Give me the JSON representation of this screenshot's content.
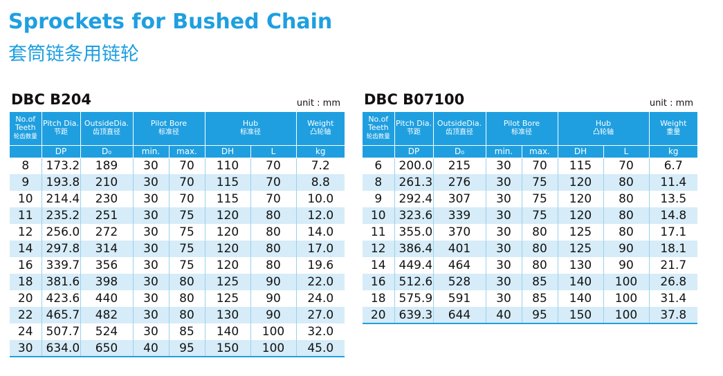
{
  "title_en": "Sprockets for Bushed Chain",
  "title_zh": "套筒链条用链轮",
  "tables": [
    {
      "model": "DBC B204",
      "unit": "unit : mm",
      "headers": {
        "teeth": "No.of Teeth",
        "teeth_zh": "轮齿数量",
        "pitch": "Pitch Dia.",
        "pitch_zh": "节距",
        "outside": "OutsideDia.",
        "outside_zh": "齿顶直径",
        "pilot": "Pilot  Bore",
        "pilot_zh": "标准径",
        "hub": "Hub",
        "hub_zh": "标准径",
        "weight": "Weight",
        "weight_zh": "凸轮轴",
        "dp": "DP",
        "do": "D₀",
        "min": "min.",
        "max": "max.",
        "dh": "DH",
        "l": "L",
        "kg": "kg"
      },
      "rows": [
        [
          "8",
          "173.2",
          "189",
          "30",
          "70",
          "110",
          "70",
          "7.2"
        ],
        [
          "9",
          "193.8",
          "210",
          "30",
          "70",
          "115",
          "70",
          "8.8"
        ],
        [
          "10",
          "214.4",
          "230",
          "30",
          "70",
          "115",
          "70",
          "10.0"
        ],
        [
          "11",
          "235.2",
          "251",
          "30",
          "75",
          "120",
          "80",
          "12.0"
        ],
        [
          "12",
          "256.0",
          "272",
          "30",
          "75",
          "120",
          "80",
          "14.0"
        ],
        [
          "14",
          "297.8",
          "314",
          "30",
          "75",
          "120",
          "80",
          "17.0"
        ],
        [
          "16",
          "339.7",
          "356",
          "30",
          "75",
          "120",
          "80",
          "19.6"
        ],
        [
          "18",
          "381.6",
          "398",
          "30",
          "80",
          "125",
          "90",
          "22.0"
        ],
        [
          "20",
          "423.6",
          "440",
          "30",
          "80",
          "125",
          "90",
          "24.0"
        ],
        [
          "22",
          "465.7",
          "482",
          "30",
          "80",
          "130",
          "90",
          "27.0"
        ],
        [
          "24",
          "507.7",
          "524",
          "30",
          "85",
          "140",
          "100",
          "32.0"
        ],
        [
          "30",
          "634.0",
          "650",
          "40",
          "95",
          "150",
          "100",
          "45.0"
        ]
      ]
    },
    {
      "model": "DBC B07100",
      "unit": "unit : mm",
      "headers": {
        "teeth": "No.of Teeth",
        "teeth_zh": "轮齿数量",
        "pitch": "Pitch Dia.",
        "pitch_zh": "节距",
        "outside": "OutsideDia.",
        "outside_zh": "齿顶直径",
        "pilot": "Pilot  Bore",
        "pilot_zh": "标准径",
        "hub": "Hub",
        "hub_zh": "凸轮轴",
        "weight": "Weight",
        "weight_zh": "重量",
        "dp": "DP",
        "do": "D₀",
        "min": "min.",
        "max": "max.",
        "dh": "DH",
        "l": "L",
        "kg": "kg"
      },
      "rows": [
        [
          "6",
          "200.0",
          "215",
          "30",
          "70",
          "115",
          "70",
          "6.7"
        ],
        [
          "8",
          "261.3",
          "276",
          "30",
          "75",
          "120",
          "80",
          "11.4"
        ],
        [
          "9",
          "292.4",
          "307",
          "30",
          "75",
          "120",
          "80",
          "13.5"
        ],
        [
          "10",
          "323.6",
          "339",
          "30",
          "75",
          "120",
          "80",
          "14.8"
        ],
        [
          "11",
          "355.0",
          "370",
          "30",
          "80",
          "125",
          "80",
          "17.1"
        ],
        [
          "12",
          "386.4",
          "401",
          "30",
          "80",
          "125",
          "90",
          "18.1"
        ],
        [
          "14",
          "449.4",
          "464",
          "30",
          "80",
          "130",
          "90",
          "21.7"
        ],
        [
          "16",
          "512.6",
          "528",
          "30",
          "85",
          "140",
          "100",
          "26.8"
        ],
        [
          "18",
          "575.9",
          "591",
          "30",
          "85",
          "140",
          "100",
          "31.4"
        ],
        [
          "20",
          "639.3",
          "644",
          "40",
          "95",
          "150",
          "100",
          "37.8"
        ]
      ]
    }
  ]
}
